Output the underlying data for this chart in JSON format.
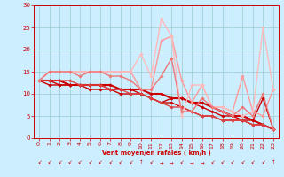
{
  "background_color": "#cceeff",
  "grid_color": "#99cccc",
  "text_color": "#cc0000",
  "xlabel": "Vent moyen/en rafales ( km/h )",
  "xlim": [
    -0.5,
    23.5
  ],
  "ylim": [
    0,
    30
  ],
  "xticks": [
    0,
    1,
    2,
    3,
    4,
    5,
    6,
    7,
    8,
    9,
    10,
    11,
    12,
    13,
    14,
    15,
    16,
    17,
    18,
    19,
    20,
    21,
    22,
    23
  ],
  "yticks": [
    0,
    5,
    10,
    15,
    20,
    25,
    30
  ],
  "series": [
    {
      "x": [
        0,
        1,
        2,
        3,
        4,
        5,
        6,
        7,
        8,
        9,
        10,
        11,
        12,
        13,
        14,
        15,
        16,
        17,
        18,
        19,
        20,
        21,
        22,
        23
      ],
      "y": [
        13,
        13,
        13,
        12,
        12,
        12,
        12,
        12,
        11,
        11,
        11,
        10,
        10,
        9,
        9,
        8,
        8,
        7,
        6,
        5,
        5,
        4,
        3,
        2
      ],
      "color": "#cc0000",
      "lw": 1.5,
      "marker": "D",
      "ms": 1.8
    },
    {
      "x": [
        0,
        1,
        2,
        3,
        4,
        5,
        6,
        7,
        8,
        9,
        10,
        11,
        12,
        13,
        14,
        15,
        16,
        17,
        18,
        19,
        20,
        21,
        22,
        23
      ],
      "y": [
        13,
        13,
        12,
        12,
        12,
        12,
        12,
        11,
        11,
        11,
        10,
        9,
        8,
        9,
        9,
        8,
        7,
        6,
        5,
        5,
        4,
        4,
        9,
        2
      ],
      "color": "#cc0000",
      "lw": 1.0,
      "marker": "D",
      "ms": 1.8
    },
    {
      "x": [
        0,
        1,
        2,
        3,
        4,
        5,
        6,
        7,
        8,
        9,
        10,
        11,
        12,
        13,
        14,
        15,
        16,
        17,
        18,
        19,
        20,
        21,
        22,
        23
      ],
      "y": [
        13,
        12,
        12,
        12,
        12,
        11,
        11,
        11,
        10,
        10,
        10,
        9,
        8,
        8,
        7,
        6,
        5,
        5,
        4,
        4,
        4,
        3,
        3,
        2
      ],
      "color": "#cc0000",
      "lw": 1.0,
      "marker": "D",
      "ms": 1.8
    },
    {
      "x": [
        0,
        1,
        2,
        3,
        4,
        5,
        6,
        7,
        8,
        9,
        10,
        11,
        12,
        13,
        14,
        15,
        16,
        17,
        18,
        19,
        20,
        21,
        22,
        23
      ],
      "y": [
        13,
        13,
        13,
        13,
        12,
        12,
        12,
        11,
        11,
        10,
        10,
        9,
        8,
        7,
        7,
        6,
        5,
        5,
        4,
        4,
        4,
        3,
        3,
        2
      ],
      "color": "#dd4444",
      "lw": 1.0,
      "marker": "D",
      "ms": 1.8
    },
    {
      "x": [
        0,
        1,
        2,
        3,
        4,
        5,
        6,
        7,
        8,
        9,
        10,
        11,
        12,
        13,
        14,
        15,
        16,
        17,
        18,
        19,
        20,
        21,
        22,
        23
      ],
      "y": [
        13,
        15,
        15,
        15,
        15,
        15,
        15,
        15,
        15,
        15,
        11,
        11,
        22,
        23,
        13,
        8,
        12,
        7,
        7,
        6,
        14,
        6,
        5,
        11
      ],
      "color": "#ff9999",
      "lw": 1.0,
      "marker": "D",
      "ms": 1.8
    },
    {
      "x": [
        0,
        1,
        2,
        3,
        4,
        5,
        6,
        7,
        8,
        9,
        10,
        11,
        12,
        13,
        14,
        15,
        16,
        17,
        18,
        19,
        20,
        21,
        22,
        23
      ],
      "y": [
        13,
        15,
        15,
        15,
        15,
        15,
        15,
        15,
        15,
        15,
        19,
        14,
        27,
        23,
        5,
        12,
        12,
        7,
        7,
        6,
        5,
        6,
        25,
        11
      ],
      "color": "#ffbbbb",
      "lw": 1.0,
      "marker": "D",
      "ms": 1.8
    },
    {
      "x": [
        0,
        1,
        2,
        3,
        4,
        5,
        6,
        7,
        8,
        9,
        10,
        11,
        12,
        13,
        14,
        15,
        16,
        17,
        18,
        19,
        20,
        21,
        22,
        23
      ],
      "y": [
        13,
        15,
        15,
        15,
        14,
        15,
        15,
        14,
        14,
        13,
        11,
        11,
        14,
        18,
        6,
        6,
        9,
        7,
        6,
        5,
        7,
        5,
        10,
        2
      ],
      "color": "#ee7777",
      "lw": 1.0,
      "marker": "D",
      "ms": 1.8
    }
  ],
  "wind_arrows": [
    "↙",
    "↙",
    "↙",
    "↙",
    "↙",
    "↙",
    "↙",
    "↙",
    "↙",
    "↙",
    "↑",
    "↙",
    "→",
    "→",
    "↙",
    "→",
    "→",
    "↙",
    "↙",
    "↙",
    "↙",
    "↙",
    "↙",
    "↑"
  ]
}
